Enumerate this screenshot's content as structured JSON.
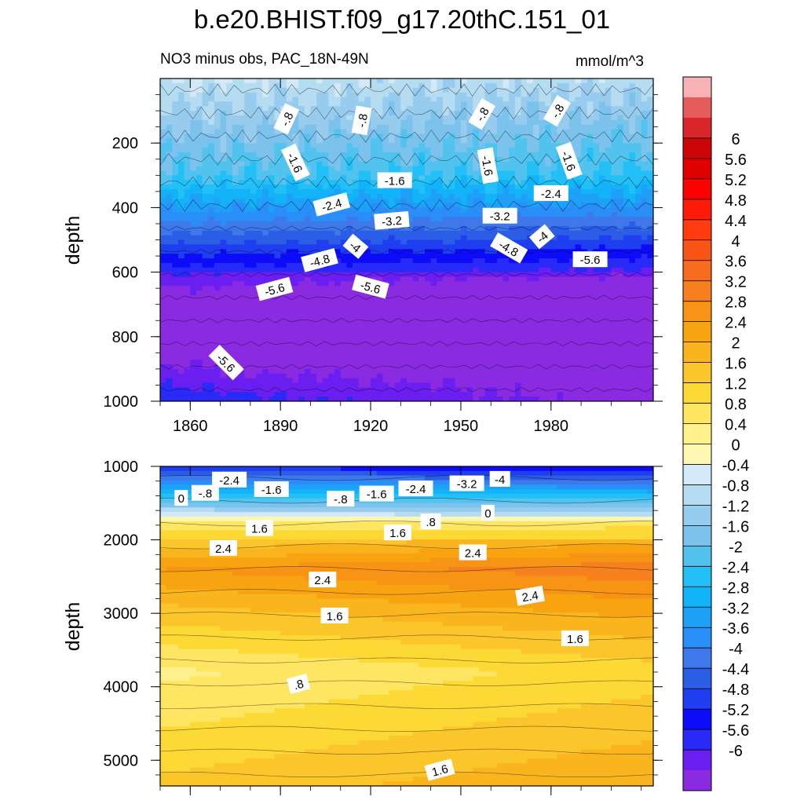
{
  "title": "b.e20.BHIST.f09_g17.20thC.151_01",
  "subtitle_left": "NO3 minus obs, PAC_18N-49N",
  "subtitle_right": "mmol/m^3",
  "chart_data": [
    {
      "type": "heatmap",
      "panel": "upper",
      "xlim": [
        1850,
        2014
      ],
      "ylim": [
        1000,
        0
      ],
      "ylabel": "depth",
      "x_ticks": [
        1860,
        1890,
        1920,
        1950,
        1980
      ],
      "y_ticks": [
        200,
        400,
        600,
        800,
        1000
      ],
      "contour_labels": [
        {
          "text": "-.8",
          "x": 1892,
          "y": 125,
          "rot": -65
        },
        {
          "text": "-.8",
          "x": 1917,
          "y": 130,
          "rot": -80
        },
        {
          "text": "-.8",
          "x": 1957,
          "y": 110,
          "rot": -60
        },
        {
          "text": "-.8",
          "x": 1982,
          "y": 100,
          "rot": -60
        },
        {
          "text": "-1.6",
          "x": 1895,
          "y": 260,
          "rot": 65
        },
        {
          "text": "-1.6",
          "x": 1928,
          "y": 315,
          "rot": 0
        },
        {
          "text": "-1.6",
          "x": 1959,
          "y": 270,
          "rot": 80
        },
        {
          "text": "-1.6",
          "x": 1986,
          "y": 255,
          "rot": 70
        },
        {
          "text": "-2.4",
          "x": 1907,
          "y": 390,
          "rot": -15
        },
        {
          "text": "-2.4",
          "x": 1980,
          "y": 355,
          "rot": 0
        },
        {
          "text": "-3.2",
          "x": 1927,
          "y": 440,
          "rot": -5
        },
        {
          "text": "-3.2",
          "x": 1963,
          "y": 425,
          "rot": 0
        },
        {
          "text": "-4",
          "x": 1915,
          "y": 520,
          "rot": 40
        },
        {
          "text": "-4",
          "x": 1977,
          "y": 490,
          "rot": -40
        },
        {
          "text": "-4.8",
          "x": 1903,
          "y": 563,
          "rot": -15
        },
        {
          "text": "-4.8",
          "x": 1966,
          "y": 525,
          "rot": 30
        },
        {
          "text": "-5.6",
          "x": 1888,
          "y": 652,
          "rot": -15
        },
        {
          "text": "-5.6",
          "x": 1920,
          "y": 645,
          "rot": 15
        },
        {
          "text": "-5.6",
          "x": 1993,
          "y": 560,
          "rot": 0
        },
        {
          "text": "-5.6",
          "x": 1872,
          "y": 880,
          "rot": 45
        }
      ]
    },
    {
      "type": "heatmap",
      "panel": "lower",
      "xlim": [
        1850,
        2014
      ],
      "ylim": [
        5350,
        1000
      ],
      "ylabel": "depth",
      "y_ticks": [
        1000,
        2000,
        3000,
        4000,
        5000
      ],
      "contour_labels": [
        {
          "text": "-2.4",
          "x": 1873,
          "y": 1180,
          "rot": 0
        },
        {
          "text": "-1.6",
          "x": 1887,
          "y": 1310,
          "rot": 0
        },
        {
          "text": "-1.6",
          "x": 1922,
          "y": 1370,
          "rot": 0
        },
        {
          "text": "-2.4",
          "x": 1935,
          "y": 1300,
          "rot": 0
        },
        {
          "text": "-3.2",
          "x": 1952,
          "y": 1230,
          "rot": 0
        },
        {
          "text": "-4",
          "x": 1963,
          "y": 1170,
          "rot": 0
        },
        {
          "text": "0",
          "x": 1857,
          "y": 1430,
          "rot": 0
        },
        {
          "text": "-.8",
          "x": 1865,
          "y": 1360,
          "rot": 0
        },
        {
          "text": "-.8",
          "x": 1910,
          "y": 1440,
          "rot": 0
        },
        {
          "text": "0",
          "x": 1959,
          "y": 1630,
          "rot": 0
        },
        {
          "text": ".8",
          "x": 1940,
          "y": 1750,
          "rot": 0
        },
        {
          "text": "1.6",
          "x": 1883,
          "y": 1840,
          "rot": 0
        },
        {
          "text": "1.6",
          "x": 1929,
          "y": 1900,
          "rot": 0
        },
        {
          "text": "2.4",
          "x": 1871,
          "y": 2110,
          "rot": 0
        },
        {
          "text": "2.4",
          "x": 1904,
          "y": 2540,
          "rot": 0
        },
        {
          "text": "2.4",
          "x": 1954,
          "y": 2170,
          "rot": 0
        },
        {
          "text": "2.4",
          "x": 1973,
          "y": 2760,
          "rot": -10
        },
        {
          "text": "1.6",
          "x": 1908,
          "y": 3030,
          "rot": 0
        },
        {
          "text": "1.6",
          "x": 1988,
          "y": 3340,
          "rot": 0
        },
        {
          "text": ".8",
          "x": 1896,
          "y": 3960,
          "rot": -15
        },
        {
          "text": "1.6",
          "x": 1943,
          "y": 5130,
          "rot": -15
        }
      ]
    }
  ],
  "colorbar": {
    "colors": [
      "#8a2be2",
      "#6a1ef0",
      "#2a2af8",
      "#0c0cf8",
      "#1e3ef0",
      "#2c5de6",
      "#3f78ea",
      "#2a8ef8",
      "#1ea0f8",
      "#12b3f8",
      "#22c0f6",
      "#52c3ee",
      "#7bc3ed",
      "#98ccef",
      "#b6dcf2",
      "#d3e9f7",
      "#fdf7b2",
      "#fef08a",
      "#fee663",
      "#fdd935",
      "#fbc62b",
      "#fab41e",
      "#f8a411",
      "#f79415",
      "#f5801d",
      "#f76d1d",
      "#fa5417",
      "#ff3b0f",
      "#ff1a0a",
      "#ff0000",
      "#e00000",
      "#cc0606",
      "#d8262a",
      "#e65c5c",
      "#f7b2b6"
    ],
    "labels": [
      "-6",
      "-5.6",
      "-5.2",
      "-4.8",
      "-4.4",
      "-4",
      "-3.6",
      "-3.2",
      "-2.8",
      "-2.4",
      "-2",
      "-1.6",
      "-1.2",
      "-0.8",
      "-0.4",
      "0",
      "0.4",
      "0.8",
      "1.2",
      "1.6",
      "2",
      "2.4",
      "2.8",
      "3.2",
      "3.6",
      "4",
      "4.4",
      "4.8",
      "5.2",
      "5.6",
      "6"
    ]
  }
}
